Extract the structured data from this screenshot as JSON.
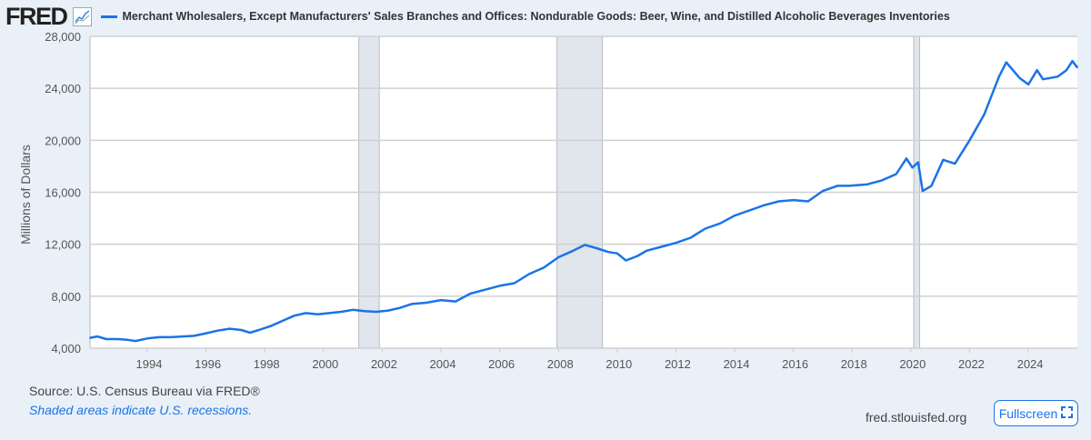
{
  "header": {
    "logo": "FRED",
    "logo_icon": "line-chart-icon"
  },
  "footer": {
    "source": "Source: U.S. Census Bureau via FRED®",
    "note": "Shaded areas indicate U.S. recessions.",
    "site": "fred.stlouisfed.org",
    "fullscreen_label": "Fullscreen",
    "fullscreen_icon": "expand-icon"
  },
  "chart_data": {
    "type": "line",
    "title": "Merchant Wholesalers, Except Manufacturers' Sales Branches and Offices: Nondurable Goods: Beer, Wine, and Distilled Alcoholic Beverages Inventories",
    "xlabel": "",
    "ylabel": "Millions of Dollars",
    "xlim": [
      1992.05,
      2025.67
    ],
    "ylim": [
      4000,
      28000
    ],
    "yticks": [
      4000,
      8000,
      12000,
      16000,
      20000,
      24000,
      28000
    ],
    "ytick_labels": [
      "4,000",
      "8,000",
      "12,000",
      "16,000",
      "20,000",
      "24,000",
      "28,000"
    ],
    "xticks": [
      1994,
      1996,
      1998,
      2000,
      2002,
      2004,
      2006,
      2008,
      2010,
      2012,
      2014,
      2016,
      2018,
      2020,
      2022,
      2024
    ],
    "xtick_labels": [
      "1994",
      "1996",
      "1998",
      "2000",
      "2002",
      "2004",
      "2006",
      "2008",
      "2010",
      "2012",
      "2014",
      "2016",
      "2018",
      "2020",
      "2022",
      "2024"
    ],
    "grid": true,
    "color": "#1a73e8",
    "recessions": [
      [
        2001.2,
        2001.9
      ],
      [
        2007.95,
        2009.5
      ],
      [
        2020.1,
        2020.3
      ]
    ],
    "series": [
      {
        "name": "Inventories",
        "x": [
          1992.05,
          1992.3,
          1992.6,
          1993.0,
          1993.3,
          1993.6,
          1994.0,
          1994.4,
          1994.8,
          1995.2,
          1995.6,
          1996.0,
          1996.4,
          1996.8,
          1997.2,
          1997.5,
          1997.8,
          1998.2,
          1998.6,
          1999.0,
          1999.4,
          1999.8,
          2000.2,
          2000.6,
          2001.0,
          2001.4,
          2001.8,
          2002.2,
          2002.6,
          2003.0,
          2003.5,
          2004.0,
          2004.5,
          2005.0,
          2005.5,
          2006.0,
          2006.5,
          2007.0,
          2007.5,
          2008.0,
          2008.5,
          2008.9,
          2009.3,
          2009.7,
          2010.0,
          2010.3,
          2010.7,
          2011.0,
          2011.5,
          2012.0,
          2012.5,
          2013.0,
          2013.5,
          2014.0,
          2014.5,
          2015.0,
          2015.5,
          2016.0,
          2016.5,
          2017.0,
          2017.5,
          2017.9,
          2018.5,
          2019.0,
          2019.5,
          2019.85,
          2020.05,
          2020.25,
          2020.4,
          2020.7,
          2021.1,
          2021.5,
          2022.0,
          2022.5,
          2023.0,
          2023.25,
          2023.7,
          2024.0,
          2024.3,
          2024.5,
          2025.0,
          2025.3,
          2025.5,
          2025.67
        ],
        "values": [
          4800,
          4900,
          4700,
          4700,
          4650,
          4550,
          4750,
          4850,
          4850,
          4900,
          4950,
          5150,
          5350,
          5500,
          5400,
          5200,
          5400,
          5700,
          6100,
          6500,
          6700,
          6600,
          6700,
          6800,
          6950,
          6850,
          6800,
          6900,
          7100,
          7400,
          7500,
          7700,
          7600,
          8200,
          8500,
          8800,
          9000,
          9700,
          10200,
          11000,
          11500,
          11950,
          11700,
          11400,
          11300,
          10750,
          11100,
          11500,
          11800,
          12100,
          12500,
          13200,
          13600,
          14200,
          14600,
          15000,
          15300,
          15400,
          15300,
          16100,
          16500,
          16500,
          16600,
          16900,
          17400,
          18600,
          17900,
          18300,
          16100,
          16500,
          18500,
          18200,
          20000,
          22000,
          24900,
          26000,
          24800,
          24300,
          25400,
          24700,
          24900,
          25400,
          26100,
          25600
        ]
      }
    ]
  }
}
